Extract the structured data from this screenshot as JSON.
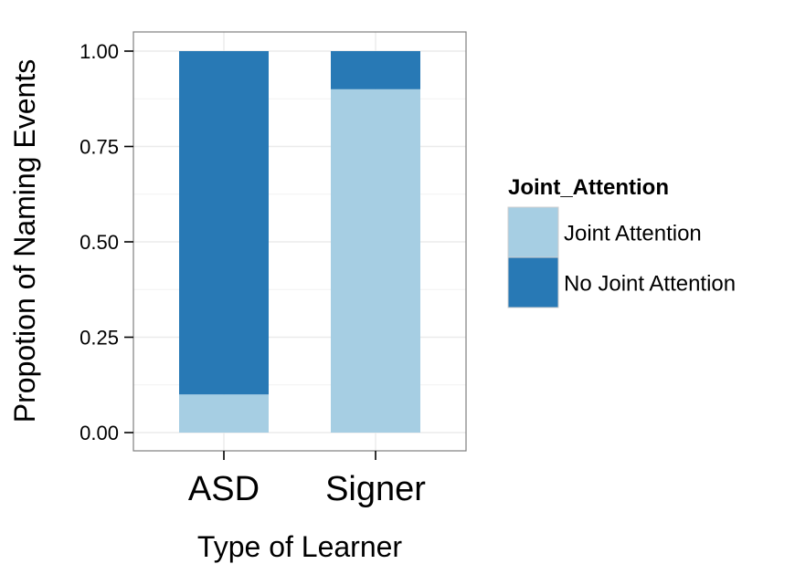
{
  "chart_data": {
    "type": "bar",
    "stacked": true,
    "title": "",
    "xlabel": "Type of Learner",
    "ylabel": "Propotion of Naming Events",
    "categories": [
      "ASD",
      "Signer"
    ],
    "series": [
      {
        "name": "Joint Attention",
        "color": "#a6cee3",
        "values": [
          0.1,
          0.9
        ]
      },
      {
        "name": "No Joint Attention",
        "color": "#2879b5",
        "values": [
          0.9,
          0.1
        ]
      }
    ],
    "ylim": [
      0,
      1
    ],
    "yticks": [
      0,
      0.25,
      0.5,
      0.75,
      1
    ],
    "ytick_labels": [
      "0.00",
      "0.25",
      "0.50",
      "0.75",
      "1.00"
    ],
    "grid": true,
    "legend": {
      "title": "Joint_Attention",
      "position": "right",
      "entries": [
        "Joint Attention",
        "No Joint Attention"
      ]
    }
  }
}
